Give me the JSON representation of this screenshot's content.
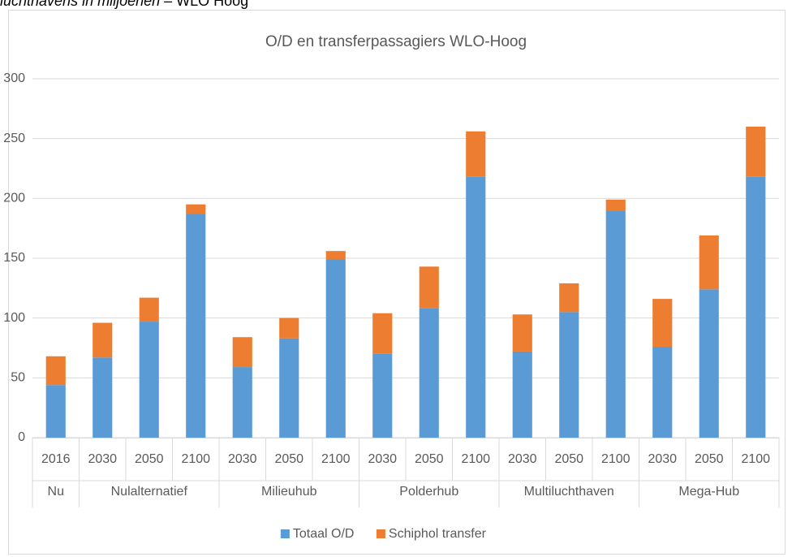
{
  "caption": {
    "italic": "luchthavens in miljoenen",
    "rest": " – WLO Hoog"
  },
  "chart_data": {
    "type": "bar",
    "stacked": true,
    "title": "O/D en transferpassagiers WLO-Hoog",
    "groups": [
      {
        "name": "Nu",
        "categories": [
          "2016"
        ]
      },
      {
        "name": "Nulalternatief",
        "categories": [
          "2030",
          "2050",
          "2100"
        ]
      },
      {
        "name": "Milieuhub",
        "categories": [
          "2030",
          "2050",
          "2100"
        ]
      },
      {
        "name": "Polderhub",
        "categories": [
          "2030",
          "2050",
          "2100"
        ]
      },
      {
        "name": "Multiluchthaven",
        "categories": [
          "2030",
          "2050",
          "2100"
        ]
      },
      {
        "name": "Mega-Hub",
        "categories": [
          "2030",
          "2050",
          "2100"
        ]
      }
    ],
    "series": [
      {
        "name": "Totaal O/D",
        "color": "#5b9bd5",
        "values": [
          44,
          67,
          97,
          187,
          59,
          83,
          149,
          70,
          108,
          218,
          72,
          105,
          190,
          76,
          124,
          218
        ]
      },
      {
        "name": "Schiphol transfer",
        "color": "#ed7d31",
        "values": [
          24,
          29,
          20,
          8,
          25,
          17,
          7,
          34,
          35,
          38,
          31,
          24,
          9,
          40,
          45,
          42
        ]
      }
    ],
    "ylim": [
      0,
      300
    ],
    "yticks": [
      0,
      50,
      100,
      150,
      200,
      250,
      300
    ],
    "grid": true,
    "legend": "bottom"
  }
}
